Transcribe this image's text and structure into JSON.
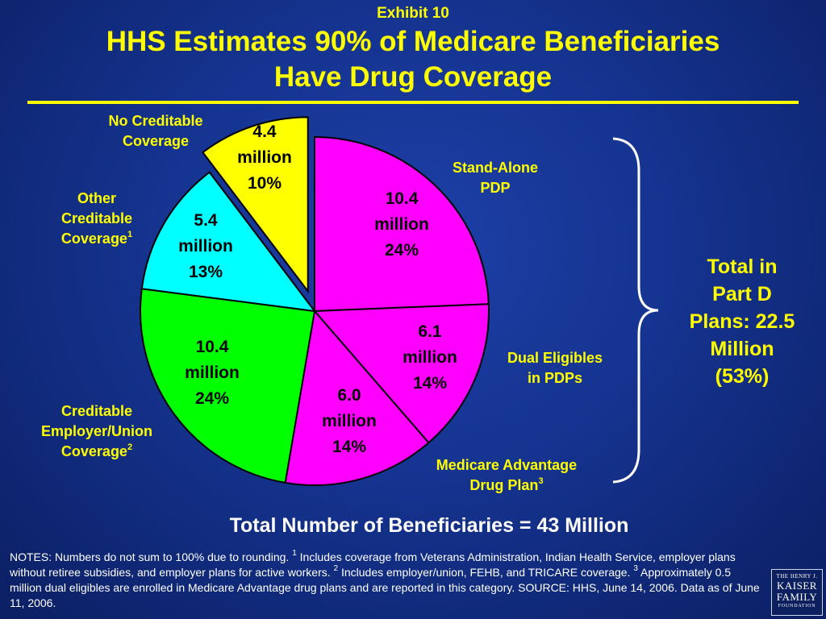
{
  "exhibit": "Exhibit 10",
  "title_line1": "HHS Estimates 90% of Medicare Beneficiaries",
  "title_line2": "Have Drug Coverage",
  "chart_data": {
    "type": "pie",
    "slices": [
      {
        "label": [
          "Stand-Alone",
          "PDP"
        ],
        "value": 10.4,
        "value_text": [
          "10.4",
          "million",
          "24%"
        ],
        "percent": 24,
        "color": "#ff00ff"
      },
      {
        "label": [
          "Dual Eligibles",
          "in PDPs"
        ],
        "value": 6.1,
        "value_text": [
          "6.1",
          "million",
          "14%"
        ],
        "percent": 14,
        "color": "#ff00ff"
      },
      {
        "label": [
          "Medicare Advantage",
          "Drug Plan"
        ],
        "label_sup": "3",
        "value": 6.0,
        "value_text": [
          "6.0",
          "million",
          "14%"
        ],
        "percent": 14,
        "color": "#ff00ff"
      },
      {
        "label": [
          "Creditable",
          "Employer/Union",
          "Coverage"
        ],
        "label_sup": "2",
        "value": 10.4,
        "value_text": [
          "10.4",
          "million",
          "24%"
        ],
        "percent": 24,
        "color": "#00ff00"
      },
      {
        "label": [
          "Other",
          "Creditable",
          "Coverage"
        ],
        "label_sup": "1",
        "value": 5.4,
        "value_text": [
          "5.4",
          "million",
          "13%"
        ],
        "percent": 13,
        "color": "#00ffff"
      },
      {
        "label": [
          "No Creditable",
          "Coverage"
        ],
        "value": 4.4,
        "value_text": [
          "4.4",
          "million",
          "10%"
        ],
        "percent": 10,
        "color": "#ffff00",
        "exploded": true
      }
    ],
    "bracket_label": [
      "Total in",
      "Part D",
      "Plans: 22.5",
      "Million",
      "(53%)"
    ]
  },
  "total_text": "Total Number of Beneficiaries = 43 Million",
  "notes": {
    "part1": "NOTES: Numbers do not sum to 100% due to rounding. ",
    "sup1": "1",
    "part2": " Includes coverage from Veterans Administration, Indian Health Service, employer plans without retiree subsidies, and employer plans for active workers. ",
    "sup2": "2",
    "part3": " Includes employer/union, FEHB, and TRICARE coverage. ",
    "sup3": "3",
    "part4": " Approximately 0.5 million dual eligibles are enrolled in Medicare Advantage drug plans and are reported in this category.  SOURCE: HHS, June 14, 2006.  Data as of June 11, 2006."
  },
  "logo": {
    "line1": "THE HENRY J.",
    "line2": "KAISER",
    "line3": "FAMILY",
    "line4": "FOUNDATION"
  }
}
